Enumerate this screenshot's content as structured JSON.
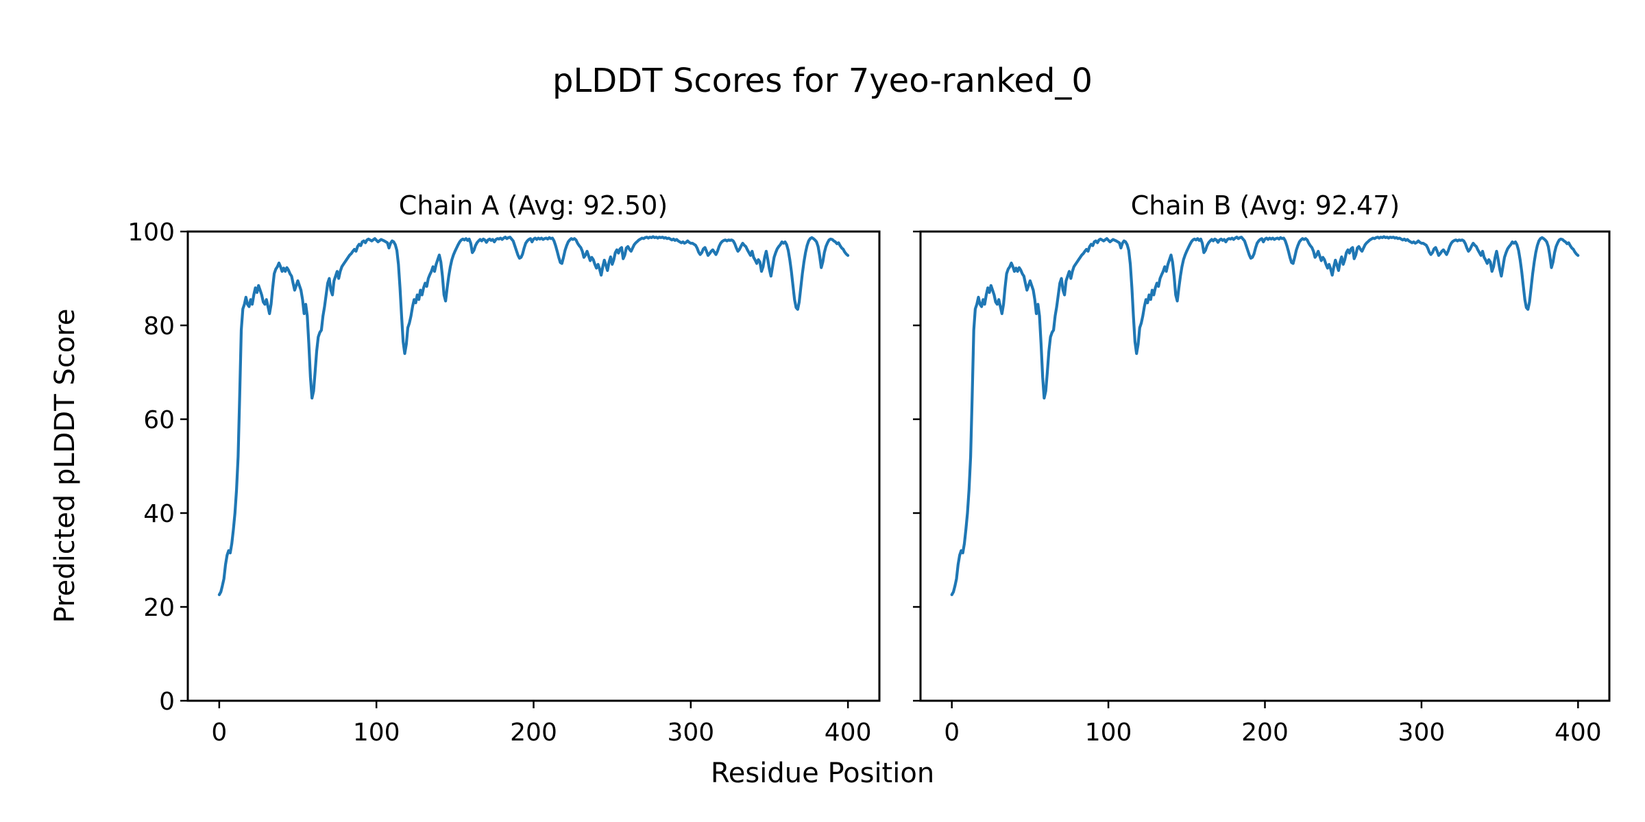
{
  "figure": {
    "background": "#ffffff"
  },
  "chart_data": {
    "type": "line",
    "suptitle": "pLDDT Scores for 7yeo-ranked_0",
    "x_label": "Residue Position",
    "y_label": "Predicted pLDDT Score",
    "xlim": [
      -20,
      420
    ],
    "ylim": [
      0,
      100
    ],
    "x_ticks": [
      0,
      100,
      200,
      300,
      400
    ],
    "y_ticks": [
      0,
      20,
      40,
      60,
      80,
      100
    ],
    "grid": false,
    "legend": "none",
    "line_color": "#1f77b4",
    "line_width": 4.2,
    "subplots": [
      {
        "title": "Chain A (Avg: 92.50)",
        "avg": 92.5
      },
      {
        "title": "Chain B (Avg: 92.47)",
        "avg": 92.47
      }
    ],
    "series_note": "Chain A and Chain B curves are visually identical; both subplots draw the same pLDDT-vs-residue series",
    "points": [
      [
        0,
        22.6
      ],
      [
        1,
        23.2
      ],
      [
        2,
        24.5
      ],
      [
        3,
        26
      ],
      [
        4,
        29
      ],
      [
        5,
        31
      ],
      [
        6,
        32
      ],
      [
        7,
        31.5
      ],
      [
        8,
        33.5
      ],
      [
        9,
        36.5
      ],
      [
        10,
        40
      ],
      [
        11,
        45
      ],
      [
        12,
        52
      ],
      [
        13,
        65
      ],
      [
        14,
        79
      ],
      [
        15,
        83.5
      ],
      [
        16,
        84.5
      ],
      [
        17,
        86
      ],
      [
        18,
        84.5
      ],
      [
        19,
        84
      ],
      [
        20,
        85.5
      ],
      [
        21,
        84.5
      ],
      [
        22,
        86.5
      ],
      [
        23,
        88
      ],
      [
        24,
        87
      ],
      [
        25,
        88.5
      ],
      [
        26,
        87.5
      ],
      [
        27,
        86.5
      ],
      [
        28,
        85
      ],
      [
        29,
        84.5
      ],
      [
        30,
        85.5
      ],
      [
        31,
        84
      ],
      [
        32,
        82.5
      ],
      [
        33,
        84.5
      ],
      [
        34,
        88
      ],
      [
        35,
        91
      ],
      [
        36,
        92
      ],
      [
        37,
        92.5
      ],
      [
        38,
        93.3
      ],
      [
        39,
        92.5
      ],
      [
        40,
        91.5
      ],
      [
        41,
        92.2
      ],
      [
        42,
        91.5
      ],
      [
        43,
        92.3
      ],
      [
        44,
        91.8
      ],
      [
        45,
        91
      ],
      [
        46,
        90.5
      ],
      [
        47,
        89
      ],
      [
        48,
        87.5
      ],
      [
        49,
        88.5
      ],
      [
        50,
        89.5
      ],
      [
        51,
        88.5
      ],
      [
        52,
        87.5
      ],
      [
        53,
        85.5
      ],
      [
        54,
        82.5
      ],
      [
        55,
        84.5
      ],
      [
        56,
        82
      ],
      [
        57,
        76
      ],
      [
        58,
        69
      ],
      [
        59,
        64.5
      ],
      [
        60,
        66
      ],
      [
        61,
        70
      ],
      [
        62,
        74.5
      ],
      [
        63,
        77.5
      ],
      [
        64,
        78.5
      ],
      [
        65,
        79
      ],
      [
        66,
        82
      ],
      [
        67,
        84
      ],
      [
        68,
        86.5
      ],
      [
        69,
        89
      ],
      [
        70,
        90
      ],
      [
        71,
        87.5
      ],
      [
        72,
        86.5
      ],
      [
        73,
        89.5
      ],
      [
        74,
        90.5
      ],
      [
        75,
        91.5
      ],
      [
        76,
        90
      ],
      [
        77,
        91.5
      ],
      [
        78,
        92.5
      ],
      [
        79,
        93
      ],
      [
        80,
        93.5
      ],
      [
        81,
        94
      ],
      [
        82,
        94.5
      ],
      [
        83,
        95
      ],
      [
        84,
        95.3
      ],
      [
        85,
        95.8
      ],
      [
        86,
        96.2
      ],
      [
        87,
        95.8
      ],
      [
        88,
        96.8
      ],
      [
        89,
        97.3
      ],
      [
        90,
        97
      ],
      [
        91,
        97.8
      ],
      [
        92,
        98
      ],
      [
        93,
        97.6
      ],
      [
        94,
        98.2
      ],
      [
        95,
        98.4
      ],
      [
        97,
        98
      ],
      [
        99,
        98.5
      ],
      [
        101,
        97.8
      ],
      [
        103,
        98.3
      ],
      [
        105,
        98
      ],
      [
        107,
        97.6
      ],
      [
        108,
        96.5
      ],
      [
        109,
        97.5
      ],
      [
        110,
        98
      ],
      [
        111,
        97.8
      ],
      [
        112,
        97.2
      ],
      [
        113,
        96
      ],
      [
        114,
        93
      ],
      [
        115,
        88
      ],
      [
        116,
        82
      ],
      [
        117,
        76.5
      ],
      [
        118,
        74
      ],
      [
        119,
        76
      ],
      [
        120,
        79.5
      ],
      [
        121,
        80.5
      ],
      [
        122,
        82
      ],
      [
        123,
        84
      ],
      [
        124,
        85.5
      ],
      [
        125,
        84.8
      ],
      [
        126,
        86.5
      ],
      [
        127,
        85.5
      ],
      [
        128,
        87.5
      ],
      [
        129,
        86.5
      ],
      [
        130,
        88
      ],
      [
        131,
        89
      ],
      [
        132,
        88.3
      ],
      [
        133,
        90
      ],
      [
        134,
        90.8
      ],
      [
        135,
        91.5
      ],
      [
        136,
        92.5
      ],
      [
        137,
        91.5
      ],
      [
        138,
        93
      ],
      [
        139,
        94
      ],
      [
        140,
        95
      ],
      [
        141,
        93.5
      ],
      [
        142,
        90.5
      ],
      [
        143,
        86.5
      ],
      [
        144,
        85.2
      ],
      [
        145,
        88
      ],
      [
        146,
        90.5
      ],
      [
        147,
        92.5
      ],
      [
        148,
        94
      ],
      [
        149,
        95
      ],
      [
        150,
        95.8
      ],
      [
        151,
        96.5
      ],
      [
        152,
        97.2
      ],
      [
        153,
        97.8
      ],
      [
        154,
        98.2
      ],
      [
        155,
        98.4
      ],
      [
        156,
        98.2
      ],
      [
        157,
        98.5
      ],
      [
        158,
        98.1
      ],
      [
        159,
        98.4
      ],
      [
        160,
        97.5
      ],
      [
        161,
        95.5
      ],
      [
        162,
        96
      ],
      [
        163,
        97
      ],
      [
        164,
        97.6
      ],
      [
        165,
        98
      ],
      [
        166,
        98.3
      ],
      [
        167,
        98
      ],
      [
        168,
        98.4
      ],
      [
        169,
        98.2
      ],
      [
        170,
        97.7
      ],
      [
        171,
        98.2
      ],
      [
        172,
        98.4
      ],
      [
        173,
        98.1
      ],
      [
        174,
        98.3
      ],
      [
        175,
        97.8
      ],
      [
        176,
        98.3
      ],
      [
        177,
        98.5
      ],
      [
        178,
        98.4
      ],
      [
        179,
        98.6
      ],
      [
        180,
        98.3
      ],
      [
        181,
        98.6
      ],
      [
        182,
        98.8
      ],
      [
        183,
        98.5
      ],
      [
        184,
        98.7
      ],
      [
        185,
        98.8
      ],
      [
        186,
        98.4
      ],
      [
        187,
        98
      ],
      [
        188,
        97
      ],
      [
        189,
        96
      ],
      [
        190,
        95
      ],
      [
        191,
        94.3
      ],
      [
        192,
        94.5
      ],
      [
        193,
        95.2
      ],
      [
        194,
        96.5
      ],
      [
        195,
        97.5
      ],
      [
        196,
        98
      ],
      [
        197,
        98.3
      ],
      [
        198,
        98.5
      ],
      [
        199,
        97.8
      ],
      [
        200,
        98.4
      ],
      [
        201,
        98.6
      ],
      [
        202,
        98.3
      ],
      [
        203,
        98.6
      ],
      [
        204,
        98.4
      ],
      [
        205,
        98.6
      ],
      [
        206,
        98.3
      ],
      [
        207,
        98.5
      ],
      [
        208,
        98.6
      ],
      [
        209,
        98.4
      ],
      [
        210,
        98.7
      ],
      [
        211,
        98.5
      ],
      [
        212,
        98.6
      ],
      [
        213,
        98
      ],
      [
        214,
        97
      ],
      [
        215,
        95.8
      ],
      [
        216,
        94.5
      ],
      [
        217,
        93.4
      ],
      [
        218,
        93.2
      ],
      [
        219,
        94.5
      ],
      [
        220,
        96
      ],
      [
        221,
        97
      ],
      [
        222,
        97.8
      ],
      [
        223,
        98.2
      ],
      [
        224,
        98.5
      ],
      [
        225,
        98.3
      ],
      [
        226,
        98.5
      ],
      [
        227,
        98.2
      ],
      [
        228,
        97.5
      ],
      [
        229,
        97
      ],
      [
        230,
        96.6
      ],
      [
        231,
        95.8
      ],
      [
        232,
        94.5
      ],
      [
        233,
        95
      ],
      [
        234,
        95.8
      ],
      [
        235,
        94.8
      ],
      [
        236,
        93.8
      ],
      [
        237,
        94.5
      ],
      [
        238,
        94
      ],
      [
        239,
        93
      ],
      [
        240,
        92.2
      ],
      [
        241,
        93
      ],
      [
        242,
        92
      ],
      [
        243,
        90.7
      ],
      [
        244,
        92.5
      ],
      [
        245,
        93.9
      ],
      [
        246,
        92.8
      ],
      [
        247,
        91.7
      ],
      [
        248,
        93.5
      ],
      [
        249,
        94.6
      ],
      [
        250,
        93
      ],
      [
        251,
        94
      ],
      [
        252,
        95.5
      ],
      [
        253,
        96.1
      ],
      [
        254,
        95.4
      ],
      [
        255,
        96.3
      ],
      [
        256,
        96.6
      ],
      [
        257,
        94.2
      ],
      [
        258,
        95
      ],
      [
        259,
        96.5
      ],
      [
        260,
        96.8
      ],
      [
        261,
        96.2
      ],
      [
        262,
        95.8
      ],
      [
        263,
        96.5
      ],
      [
        264,
        97.2
      ],
      [
        265,
        97.6
      ],
      [
        266,
        97.9
      ],
      [
        267,
        98.2
      ],
      [
        268,
        98.4
      ],
      [
        269,
        98.6
      ],
      [
        270,
        98.5
      ],
      [
        271,
        98.7
      ],
      [
        272,
        98.8
      ],
      [
        273,
        98.6
      ],
      [
        274,
        98.8
      ],
      [
        275,
        98.7
      ],
      [
        276,
        98.9
      ],
      [
        277,
        98.7
      ],
      [
        278,
        98.8
      ],
      [
        279,
        98.6
      ],
      [
        280,
        98.8
      ],
      [
        281,
        98.7
      ],
      [
        282,
        98.8
      ],
      [
        283,
        98.6
      ],
      [
        284,
        98.7
      ],
      [
        285,
        98.5
      ],
      [
        286,
        98.6
      ],
      [
        287,
        98.4
      ],
      [
        288,
        98.2
      ],
      [
        289,
        98.4
      ],
      [
        290,
        98.1
      ],
      [
        291,
        98.3
      ],
      [
        292,
        98
      ],
      [
        293,
        97.8
      ],
      [
        294,
        97.6
      ],
      [
        295,
        97.8
      ],
      [
        296,
        97.5
      ],
      [
        297,
        97.7
      ],
      [
        298,
        98
      ],
      [
        299,
        97.7
      ],
      [
        300,
        97.5
      ],
      [
        301,
        97.5
      ],
      [
        302,
        97.3
      ],
      [
        303,
        97.1
      ],
      [
        304,
        96.5
      ],
      [
        305,
        95.6
      ],
      [
        306,
        95.1
      ],
      [
        307,
        95.5
      ],
      [
        308,
        96.3
      ],
      [
        309,
        96.6
      ],
      [
        310,
        95.8
      ],
      [
        311,
        94.9
      ],
      [
        312,
        95.3
      ],
      [
        313,
        95.8
      ],
      [
        314,
        96.1
      ],
      [
        315,
        95.6
      ],
      [
        316,
        95.1
      ],
      [
        317,
        95.8
      ],
      [
        318,
        96.8
      ],
      [
        319,
        97.5
      ],
      [
        320,
        97.9
      ],
      [
        321,
        98.1
      ],
      [
        322,
        98.2
      ],
      [
        323,
        98
      ],
      [
        324,
        98.2
      ],
      [
        325,
        98.1
      ],
      [
        326,
        98.2
      ],
      [
        327,
        98
      ],
      [
        328,
        97.4
      ],
      [
        329,
        96.5
      ],
      [
        330,
        95.8
      ],
      [
        331,
        96.2
      ],
      [
        332,
        96.9
      ],
      [
        333,
        97.5
      ],
      [
        334,
        97.1
      ],
      [
        335,
        96.8
      ],
      [
        336,
        96.1
      ],
      [
        337,
        95.5
      ],
      [
        338,
        94.9
      ],
      [
        339,
        95.8
      ],
      [
        340,
        94.5
      ],
      [
        341,
        93.9
      ],
      [
        342,
        93.2
      ],
      [
        343,
        94
      ],
      [
        344,
        93.5
      ],
      [
        345,
        91.5
      ],
      [
        346,
        92.5
      ],
      [
        347,
        94.5
      ],
      [
        348,
        95.8
      ],
      [
        349,
        94
      ],
      [
        350,
        92
      ],
      [
        351,
        90.5
      ],
      [
        352,
        92.5
      ],
      [
        353,
        94.5
      ],
      [
        354,
        95.5
      ],
      [
        355,
        96.3
      ],
      [
        356,
        96.8
      ],
      [
        357,
        97.2
      ],
      [
        358,
        97.8
      ],
      [
        359,
        97.5
      ],
      [
        360,
        97.8
      ],
      [
        361,
        97.2
      ],
      [
        362,
        96
      ],
      [
        363,
        94
      ],
      [
        364,
        91.5
      ],
      [
        365,
        88.5
      ],
      [
        366,
        85.5
      ],
      [
        367,
        83.8
      ],
      [
        368,
        83.4
      ],
      [
        369,
        85
      ],
      [
        370,
        88
      ],
      [
        371,
        91
      ],
      [
        372,
        93.5
      ],
      [
        373,
        95.5
      ],
      [
        374,
        97
      ],
      [
        375,
        98
      ],
      [
        376,
        98.5
      ],
      [
        377,
        98.7
      ],
      [
        378,
        98.5
      ],
      [
        379,
        98.2
      ],
      [
        380,
        97.8
      ],
      [
        381,
        96.8
      ],
      [
        382,
        94.8
      ],
      [
        383,
        92.3
      ],
      [
        384,
        93.5
      ],
      [
        385,
        95.5
      ],
      [
        386,
        96.8
      ],
      [
        387,
        97.6
      ],
      [
        388,
        98.2
      ],
      [
        389,
        98.4
      ],
      [
        390,
        98.3
      ],
      [
        391,
        98
      ],
      [
        392,
        97.8
      ],
      [
        393,
        97.4
      ],
      [
        394,
        97.6
      ],
      [
        395,
        97
      ],
      [
        396,
        96.5
      ],
      [
        397,
        96.2
      ],
      [
        398,
        95.6
      ],
      [
        399,
        95.2
      ],
      [
        400,
        94.9
      ]
    ]
  }
}
